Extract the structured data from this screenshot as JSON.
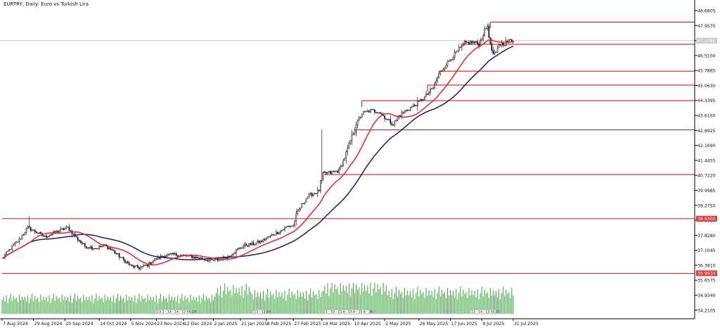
{
  "chart_data": {
    "type": "candlestick",
    "title": "EURTRY, Daily:  Euro vs Turkish Lira",
    "symbol": "EURTRY",
    "timeframe": "Daily",
    "y_ticks": [
      "48.6805",
      "47.9570",
      "47.2285",
      "46.5100",
      "45.7865",
      "45.0630",
      "44.3395",
      "43.6160",
      "42.8925",
      "42.1690",
      "41.4455",
      "40.7220",
      "39.9985",
      "39.2750",
      "38.5515",
      "37.8280",
      "37.1045",
      "36.3810",
      "35.6575",
      "34.9340",
      "34.2105"
    ],
    "ylim": [
      34.0,
      48.85
    ],
    "x_ticks": [
      {
        "label": "7 Aug 2024",
        "day": 0
      },
      {
        "label": "29 Aug 2024",
        "day": 22
      },
      {
        "label": "20 Sep 2024",
        "day": 44
      },
      {
        "label": "14 Oct 2024",
        "day": 68
      },
      {
        "label": "5 Nov 2024",
        "day": 90
      },
      {
        "label": "23 Nov 2024",
        "day": 108
      },
      {
        "label": "12 Dec 2024",
        "day": 127
      },
      {
        "label": "2 Jan 2025",
        "day": 148
      },
      {
        "label": "21 Jan 2025",
        "day": 167
      },
      {
        "label": "8 Feb 2025",
        "day": 185
      },
      {
        "label": "27 Feb 2025",
        "day": 204
      },
      {
        "label": "19 Mar 2025",
        "day": 224
      },
      {
        "label": "10 Apr 2025",
        "day": 246
      },
      {
        "label": "2 May 2025",
        "day": 268
      },
      {
        "label": "26 May 2025",
        "day": 292
      },
      {
        "label": "17 Jun 2025",
        "day": 314
      },
      {
        "label": "9 Jul 2025",
        "day": 336
      },
      {
        "label": "31 Jul 2025",
        "day": 358
      }
    ],
    "xlim_days": [
      0,
      362
    ],
    "last_day": 358,
    "price_labels": [
      {
        "price": 47.228,
        "text": "47.2280",
        "bg": "#c8c8c8",
        "fg": "#ffffff"
      },
      {
        "price": 38.63,
        "text": "38.6300",
        "bg": "#e53935",
        "fg": "#ffffff"
      },
      {
        "price": 35.9934,
        "text": "35.9934",
        "bg": "#e53935",
        "fg": "#ffffff"
      }
    ],
    "current_price": 47.228,
    "horizontal_levels": [
      {
        "price": 38.63,
        "from_day": 0
      },
      {
        "price": 35.99,
        "from_day": 0
      }
    ],
    "zones": [
      {
        "price": 48.12,
        "from_day": 342
      },
      {
        "price": 47.05,
        "from_day": 322
      },
      {
        "price": 45.75,
        "from_day": 306
      },
      {
        "price": 45.08,
        "from_day": 298
      },
      {
        "price": 44.33,
        "from_day": 252
      },
      {
        "price": 42.92,
        "from_day": 248
      },
      {
        "price": 40.76,
        "from_day": 225
      }
    ],
    "anchors": [
      [
        0,
        36.7
      ],
      [
        6,
        37.2
      ],
      [
        12,
        37.6
      ],
      [
        18,
        38.2
      ],
      [
        22,
        38.05
      ],
      [
        30,
        37.75
      ],
      [
        40,
        38.05
      ],
      [
        46,
        38.2
      ],
      [
        52,
        37.7
      ],
      [
        58,
        37.3
      ],
      [
        66,
        37.2
      ],
      [
        72,
        37.35
      ],
      [
        78,
        37.05
      ],
      [
        84,
        36.7
      ],
      [
        90,
        36.35
      ],
      [
        96,
        36.25
      ],
      [
        102,
        36.4
      ],
      [
        108,
        36.7
      ],
      [
        114,
        36.85
      ],
      [
        120,
        36.9
      ],
      [
        126,
        36.85
      ],
      [
        132,
        36.8
      ],
      [
        140,
        36.7
      ],
      [
        146,
        36.6
      ],
      [
        152,
        36.65
      ],
      [
        158,
        36.8
      ],
      [
        164,
        37.1
      ],
      [
        170,
        37.35
      ],
      [
        176,
        37.4
      ],
      [
        182,
        37.55
      ],
      [
        188,
        37.8
      ],
      [
        194,
        38.0
      ],
      [
        200,
        38.25
      ],
      [
        204,
        38.3
      ],
      [
        206,
        38.8
      ],
      [
        210,
        39.3
      ],
      [
        214,
        39.7
      ],
      [
        220,
        39.9
      ],
      [
        222,
        40.0
      ],
      [
        224,
        40.8
      ],
      [
        230,
        40.85
      ],
      [
        236,
        40.95
      ],
      [
        240,
        41.6
      ],
      [
        244,
        42.4
      ],
      [
        248,
        43.2
      ],
      [
        252,
        43.7
      ],
      [
        258,
        43.85
      ],
      [
        264,
        43.8
      ],
      [
        270,
        43.4
      ],
      [
        274,
        43.2
      ],
      [
        278,
        43.6
      ],
      [
        284,
        43.9
      ],
      [
        290,
        44.15
      ],
      [
        296,
        44.5
      ],
      [
        302,
        44.95
      ],
      [
        306,
        45.6
      ],
      [
        310,
        46.0
      ],
      [
        316,
        46.5
      ],
      [
        320,
        46.8
      ],
      [
        324,
        47.1
      ],
      [
        330,
        47.15
      ],
      [
        334,
        47.05
      ],
      [
        338,
        47.7
      ],
      [
        340,
        47.95
      ],
      [
        342,
        47.0
      ],
      [
        344,
        46.55
      ],
      [
        346,
        46.6
      ],
      [
        348,
        47.05
      ],
      [
        352,
        47.1
      ],
      [
        356,
        47.25
      ],
      [
        358,
        47.23
      ]
    ],
    "spikes": [
      {
        "day": 224,
        "high": 42.95
      },
      {
        "day": 19,
        "high": 38.75
      },
      {
        "day": 340,
        "high": 48.05
      }
    ],
    "ma_fast": {
      "name": "",
      "period": 21,
      "color": "#ff1e1e"
    },
    "ma_slow": {
      "name": "",
      "period": 50,
      "color": "#1a1a7a"
    },
    "volume_pattern": [
      0.45,
      0.55,
      0.4,
      0.6,
      0.35,
      0.5,
      0.65,
      0.42,
      0.58,
      0.48,
      0.52,
      0.38,
      0.62,
      0.44,
      0.56
    ],
    "volume_boosts": [
      {
        "from": 150,
        "to": 175,
        "mult": 1.5
      },
      {
        "from": 175,
        "to": 225,
        "mult": 1.25
      },
      {
        "from": 225,
        "to": 270,
        "mult": 1.65
      },
      {
        "from": 270,
        "to": 360,
        "mult": 1.35
      }
    ],
    "volume_tags": [
      {
        "from_day": 108,
        "to_day": 132,
        "text": "15.1 · 14 · 14 · 12:00.10"
      },
      {
        "from_day": 176,
        "to_day": 184,
        "text": "13 · 12:43"
      },
      {
        "from_day": 226,
        "to_day": 258,
        "text": "1 · 10 · 15.6 · 15.6 · 15.6 · 20"
      },
      {
        "from_day": 328,
        "to_day": 346,
        "text": "13 · 14 · 13:30.15"
      }
    ]
  }
}
